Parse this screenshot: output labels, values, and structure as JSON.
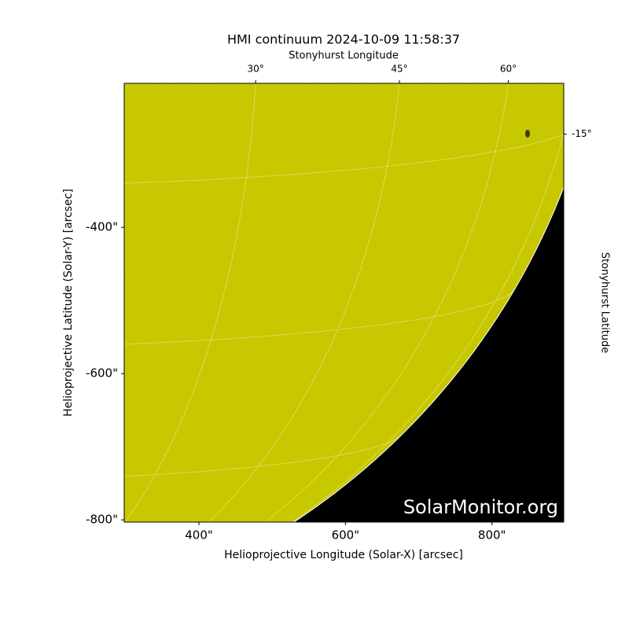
{
  "chart_data": {
    "type": "solar-image",
    "title": "HMI continuum 2024-10-09 11:58:37",
    "xlabel": "Helioprojective Longitude (Solar-X) [arcsec]",
    "ylabel": "Helioprojective Latitude (Solar-Y) [arcsec]",
    "top_axis_label": "Stonyhurst Longitude",
    "right_axis_label": "Stonyhurst Latitude",
    "watermark": "SolarMonitor.org",
    "xlim": [
      298,
      898
    ],
    "ylim": [
      -803,
      -203
    ],
    "xticks": [
      {
        "value": 400,
        "label": "400\""
      },
      {
        "value": 600,
        "label": "600\""
      },
      {
        "value": 800,
        "label": "800\""
      }
    ],
    "yticks": [
      {
        "value": -400,
        "label": "-400\""
      },
      {
        "value": -600,
        "label": "-600\""
      },
      {
        "value": -800,
        "label": "-800\""
      }
    ],
    "top_ticks": [
      {
        "value": 30,
        "label": "30°"
      },
      {
        "value": 45,
        "label": "45°"
      },
      {
        "value": 60,
        "label": "60°"
      }
    ],
    "right_ticks": [
      {
        "value": -15,
        "label": "-15°"
      }
    ],
    "disk_color": "#c8c800",
    "background_color": "#000000",
    "grid": true
  }
}
